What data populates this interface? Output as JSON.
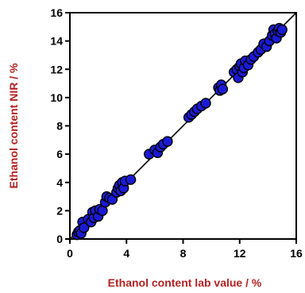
{
  "chart_data": {
    "type": "scatter",
    "xlabel": "Ethanol content lab value / %",
    "ylabel": "Ethanol content NIR / %",
    "xlim": [
      0,
      16
    ],
    "ylim": [
      0,
      16
    ],
    "x_ticks": [
      0,
      4,
      8,
      12,
      16
    ],
    "y_ticks": [
      0,
      2,
      4,
      6,
      8,
      10,
      12,
      14,
      16
    ],
    "x_tick_labels": [
      "0",
      "4",
      "8",
      "12",
      "16"
    ],
    "y_tick_labels": [
      "0",
      "2",
      "4",
      "6",
      "8",
      "10",
      "12",
      "14",
      "16"
    ],
    "grid": false,
    "legend": "none",
    "reference_line": {
      "from": [
        0,
        0
      ],
      "to": [
        16,
        16
      ],
      "color": "#000000"
    },
    "marker_color": "#1a1ad6",
    "label_color": "#b22222",
    "points": [
      [
        0.5,
        0.3
      ],
      [
        0.6,
        0.5
      ],
      [
        0.7,
        0.6
      ],
      [
        0.8,
        0.4
      ],
      [
        0.9,
        1.2
      ],
      [
        1.0,
        0.8
      ],
      [
        1.3,
        1.4
      ],
      [
        1.5,
        1.2
      ],
      [
        1.6,
        1.9
      ],
      [
        1.7,
        1.5
      ],
      [
        1.8,
        2.0
      ],
      [
        2.0,
        1.6
      ],
      [
        2.1,
        2.1
      ],
      [
        2.3,
        2.0
      ],
      [
        2.5,
        2.6
      ],
      [
        2.6,
        3.0
      ],
      [
        2.8,
        2.9
      ],
      [
        3.0,
        2.8
      ],
      [
        3.3,
        3.3
      ],
      [
        3.4,
        3.6
      ],
      [
        3.5,
        3.8
      ],
      [
        3.6,
        3.4
      ],
      [
        3.7,
        4.0
      ],
      [
        3.8,
        3.6
      ],
      [
        3.9,
        4.1
      ],
      [
        4.3,
        4.2
      ],
      [
        5.6,
        6.0
      ],
      [
        6.0,
        6.3
      ],
      [
        6.2,
        6.1
      ],
      [
        6.4,
        6.5
      ],
      [
        6.6,
        6.7
      ],
      [
        6.9,
        6.9
      ],
      [
        8.4,
        8.6
      ],
      [
        8.6,
        8.8
      ],
      [
        8.8,
        9.0
      ],
      [
        9.0,
        9.2
      ],
      [
        9.3,
        9.4
      ],
      [
        9.6,
        9.6
      ],
      [
        10.5,
        10.7
      ],
      [
        10.6,
        10.5
      ],
      [
        10.7,
        10.9
      ],
      [
        10.8,
        10.6
      ],
      [
        11.6,
        11.8
      ],
      [
        11.8,
        12.0
      ],
      [
        11.9,
        11.4
      ],
      [
        12.0,
        12.2
      ],
      [
        12.1,
        12.4
      ],
      [
        12.2,
        11.8
      ],
      [
        12.3,
        12.1
      ],
      [
        12.4,
        12.6
      ],
      [
        12.6,
        12.3
      ],
      [
        12.8,
        12.7
      ],
      [
        13.0,
        12.9
      ],
      [
        13.3,
        13.2
      ],
      [
        13.5,
        13.4
      ],
      [
        13.7,
        13.8
      ],
      [
        13.9,
        13.6
      ],
      [
        14.1,
        14.0
      ],
      [
        14.3,
        14.4
      ],
      [
        14.4,
        14.8
      ],
      [
        14.5,
        14.5
      ],
      [
        14.6,
        14.2
      ],
      [
        14.7,
        14.7
      ],
      [
        14.8,
        14.9
      ],
      [
        14.9,
        14.6
      ],
      [
        15.0,
        14.8
      ]
    ]
  }
}
